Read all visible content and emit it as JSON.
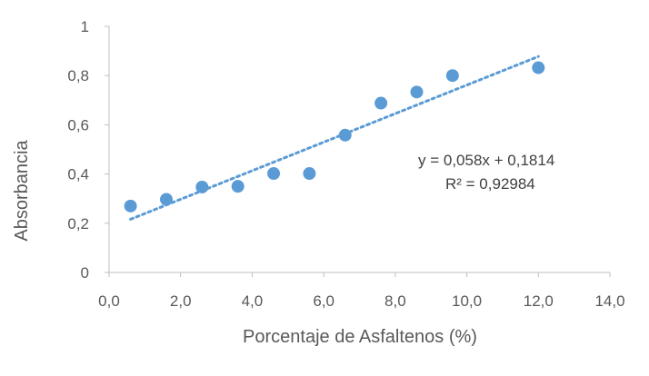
{
  "chart_data": {
    "type": "scatter",
    "xlabel": "Porcentaje  de  Asfaltenos (%)",
    "ylabel": "Absorbancia",
    "xlim": [
      0,
      14
    ],
    "ylim": [
      0,
      1
    ],
    "x_ticks": [
      "0,0",
      "2,0",
      "4,0",
      "6,0",
      "8,0",
      "10,0",
      "12,0",
      "14,0"
    ],
    "y_ticks": [
      "0",
      "0,2",
      "0,4",
      "0,6",
      "0,8",
      "1"
    ],
    "points": [
      {
        "x": 0.6,
        "y": 0.27
      },
      {
        "x": 1.6,
        "y": 0.297
      },
      {
        "x": 2.6,
        "y": 0.347
      },
      {
        "x": 3.6,
        "y": 0.35
      },
      {
        "x": 4.6,
        "y": 0.402
      },
      {
        "x": 5.6,
        "y": 0.402
      },
      {
        "x": 6.6,
        "y": 0.558
      },
      {
        "x": 7.6,
        "y": 0.688
      },
      {
        "x": 8.6,
        "y": 0.733
      },
      {
        "x": 9.6,
        "y": 0.8
      },
      {
        "x": 12.0,
        "y": 0.832
      }
    ],
    "trendline": {
      "type": "linear",
      "slope": 0.058,
      "intercept": 0.1814,
      "x_range": [
        0.6,
        12.0
      ],
      "equation": "y = 0,058x + 0,1814",
      "r_squared": "R² = 0,92984"
    },
    "grid": false,
    "legend": "none",
    "colors": {
      "marker": "#5b9bd5",
      "trendline": "#5b9bd5",
      "axis": "#bfbfbf",
      "text": "#595959"
    }
  }
}
